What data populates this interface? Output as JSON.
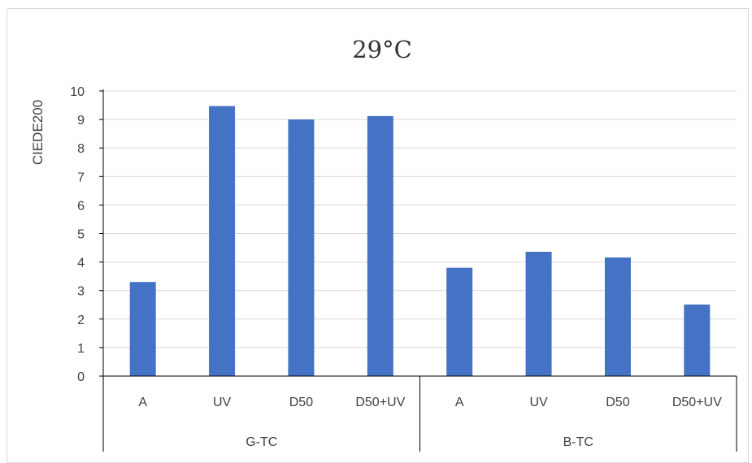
{
  "chart_data": {
    "type": "bar",
    "title": "29°C",
    "ylabel": "CIEDE200",
    "xlabel": "",
    "ylim": [
      0,
      10
    ],
    "yticks": [
      0,
      1,
      2,
      3,
      4,
      5,
      6,
      7,
      8,
      9,
      10
    ],
    "grid": true,
    "categories": [
      "A",
      "UV",
      "D50",
      "D50+UV",
      "A",
      "UV",
      "D50",
      "D50+UV"
    ],
    "groups": [
      {
        "label": "G-TC",
        "span": 4
      },
      {
        "label": "B-TC",
        "span": 4
      }
    ],
    "values": [
      3.3,
      9.47,
      9.0,
      9.12,
      3.8,
      4.36,
      4.16,
      2.51
    ],
    "bar_color": "#4472c4",
    "grid_color": "#d9d9d9"
  }
}
